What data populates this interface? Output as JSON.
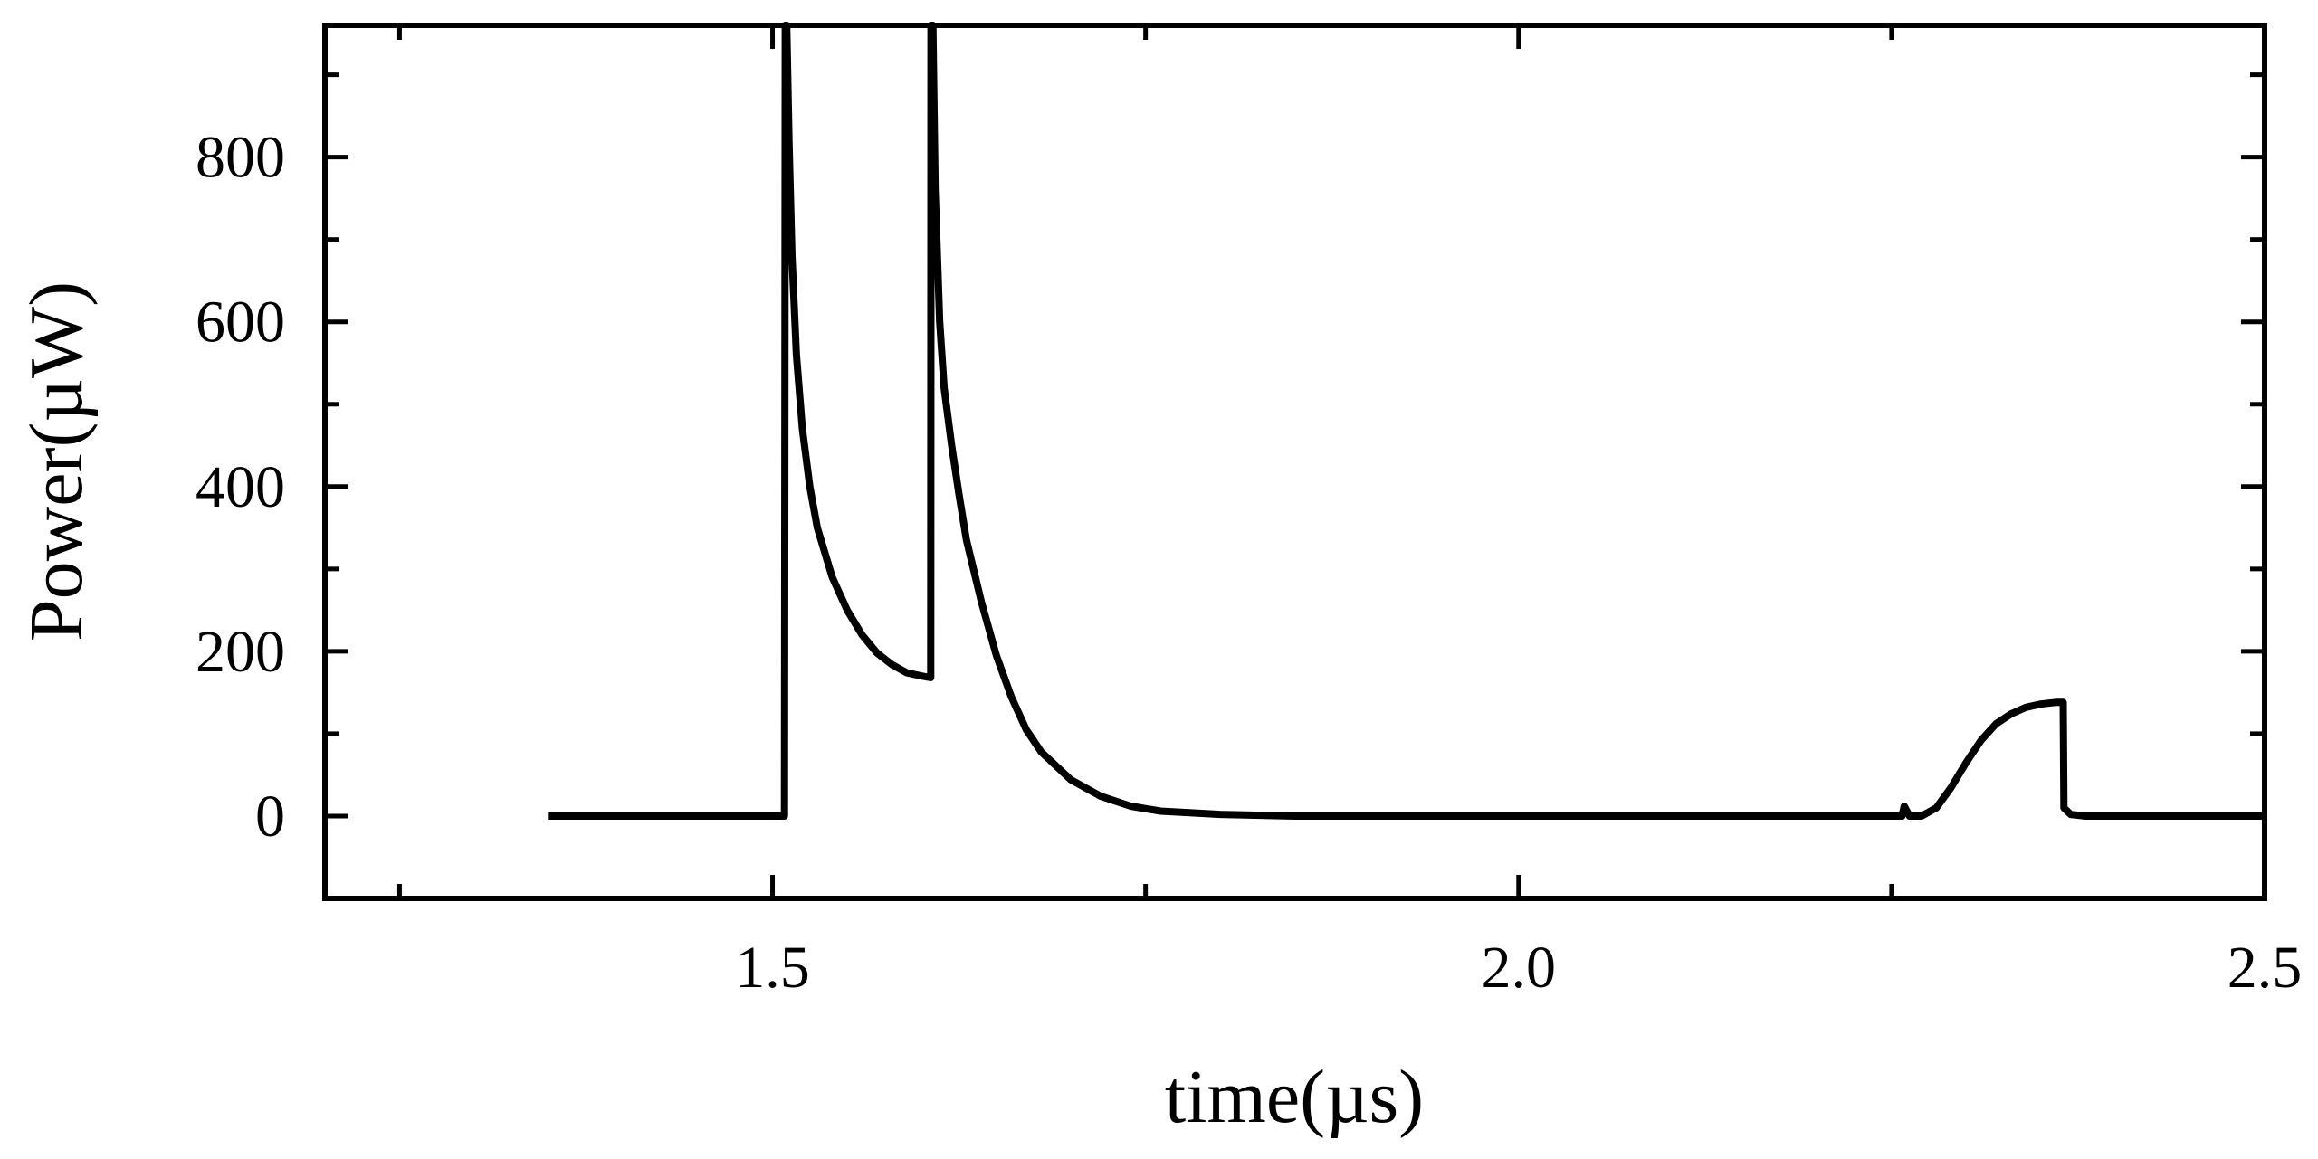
{
  "chart_data": {
    "type": "line",
    "xlabel": "time(µs)",
    "ylabel": "Power(µW)",
    "xlim": [
      1.2,
      2.5
    ],
    "ylim": [
      -100,
      960
    ],
    "x_ticks": [
      1.5,
      2.0,
      2.5
    ],
    "x_tick_labels": [
      "1.5",
      "2.0",
      "2.5"
    ],
    "x_minor_step": 0.25,
    "y_ticks": [
      0,
      200,
      400,
      600,
      800
    ],
    "y_tick_labels": [
      "0",
      "200",
      "400",
      "600",
      "800"
    ],
    "y_minor_step": 100,
    "grid": false,
    "colors": {
      "line": "#000000",
      "frame": "#000000",
      "background": "#ffffff"
    },
    "series": [
      {
        "x": [
          1.35,
          1.508,
          1.5085,
          1.5095,
          1.511,
          1.513,
          1.516,
          1.52,
          1.525,
          1.53,
          1.54,
          1.55,
          1.56,
          1.57,
          1.58,
          1.59,
          1.6,
          1.606,
          1.6062,
          1.6075,
          1.609,
          1.612,
          1.615,
          1.62,
          1.625,
          1.63,
          1.64,
          1.65,
          1.66,
          1.67,
          1.68,
          1.7,
          1.72,
          1.74,
          1.76,
          1.8,
          1.85,
          1.9,
          2.0,
          2.1,
          2.2,
          2.257,
          2.2585,
          2.262,
          2.27,
          2.28,
          2.29,
          2.3,
          2.31,
          2.32,
          2.33,
          2.34,
          2.35,
          2.36,
          2.365,
          2.3655,
          2.37,
          2.38,
          2.4,
          2.5
        ],
        "y": [
          0,
          0,
          960,
          960,
          820,
          680,
          560,
          470,
          400,
          350,
          290,
          250,
          220,
          198,
          184,
          174,
          170,
          168,
          960,
          960,
          760,
          600,
          520,
          450,
          390,
          335,
          260,
          195,
          145,
          105,
          78,
          44,
          24,
          12,
          6,
          2,
          0,
          0,
          0,
          0,
          0,
          0,
          12,
          0,
          0,
          10,
          35,
          65,
          92,
          112,
          124,
          132,
          136,
          138,
          138,
          10,
          2,
          0,
          0,
          0
        ]
      }
    ]
  }
}
